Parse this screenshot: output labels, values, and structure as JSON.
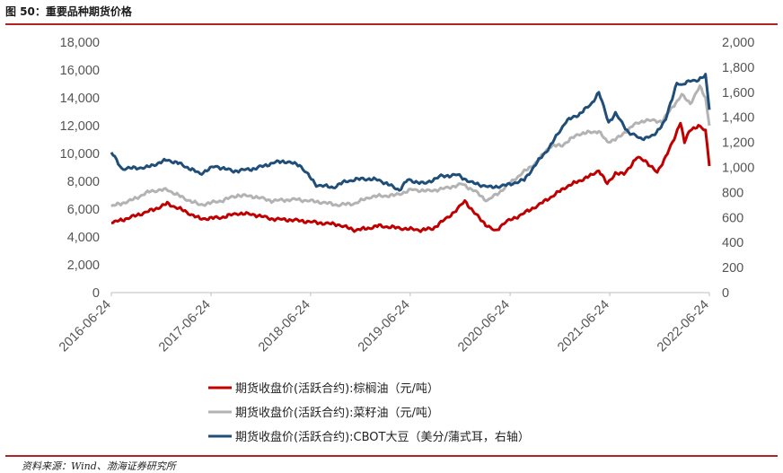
{
  "figure": {
    "title": "图 50：重要品种期货价格",
    "source": "资料来源：Wind、渤海证券研究所"
  },
  "chart_data": {
    "type": "line",
    "x_ticks": [
      "2016-06-24",
      "2017-06-24",
      "2018-06-24",
      "2019-06-24",
      "2020-06-24",
      "2021-06-24",
      "2022-06-24"
    ],
    "x_range": [
      "2016-06-24",
      "2022-06-24"
    ],
    "y_left": {
      "min": 0,
      "max": 18000,
      "ticks": [
        "0",
        "2,000",
        "4,000",
        "6,000",
        "8,000",
        "10,000",
        "12,000",
        "14,000",
        "16,000",
        "18,000"
      ]
    },
    "y_right": {
      "min": 0,
      "max": 2000,
      "ticks": [
        "0",
        "200",
        "400",
        "600",
        "800",
        "1,000",
        "1,200",
        "1,400",
        "1,600",
        "1,800",
        "2,000"
      ]
    },
    "grid": false,
    "legend_position": "bottom",
    "series": [
      {
        "name": "期货收盘价(活跃合约):棕榈油（元/吨）",
        "axis": "left",
        "color": "#c00000",
        "points": [
          [
            "2016-06-24",
            5000
          ],
          [
            "2016-09-01",
            5400
          ],
          [
            "2016-12-01",
            6000
          ],
          [
            "2017-01-15",
            6400
          ],
          [
            "2017-03-15",
            5900
          ],
          [
            "2017-05-15",
            5300
          ],
          [
            "2017-08-01",
            5400
          ],
          [
            "2017-10-01",
            5700
          ],
          [
            "2017-12-01",
            5600
          ],
          [
            "2018-02-01",
            5300
          ],
          [
            "2018-05-01",
            5200
          ],
          [
            "2018-08-01",
            5000
          ],
          [
            "2018-10-01",
            4900
          ],
          [
            "2018-12-01",
            4500
          ],
          [
            "2019-01-15",
            4600
          ],
          [
            "2019-03-01",
            4800
          ],
          [
            "2019-06-01",
            4600
          ],
          [
            "2019-08-01",
            4500
          ],
          [
            "2019-09-15",
            4600
          ],
          [
            "2019-11-01",
            5300
          ],
          [
            "2019-12-15",
            6000
          ],
          [
            "2020-01-10",
            6600
          ],
          [
            "2020-02-15",
            5700
          ],
          [
            "2020-04-01",
            4800
          ],
          [
            "2020-05-01",
            4400
          ],
          [
            "2020-06-01",
            5000
          ],
          [
            "2020-07-15",
            5400
          ],
          [
            "2020-09-01",
            5900
          ],
          [
            "2020-10-15",
            6400
          ],
          [
            "2020-12-01",
            7000
          ],
          [
            "2021-01-15",
            7600
          ],
          [
            "2021-03-01",
            8000
          ],
          [
            "2021-04-15",
            8400
          ],
          [
            "2021-05-15",
            8800
          ],
          [
            "2021-06-15",
            7800
          ],
          [
            "2021-07-15",
            8600
          ],
          [
            "2021-08-15",
            8500
          ],
          [
            "2021-10-01",
            9700
          ],
          [
            "2021-11-01",
            9500
          ],
          [
            "2021-12-15",
            8600
          ],
          [
            "2022-01-15",
            9800
          ],
          [
            "2022-02-15",
            11000
          ],
          [
            "2022-03-10",
            12300
          ],
          [
            "2022-03-25",
            10800
          ],
          [
            "2022-04-15",
            11700
          ],
          [
            "2022-05-15",
            12000
          ],
          [
            "2022-06-10",
            11600
          ],
          [
            "2022-06-24",
            9100
          ]
        ]
      },
      {
        "name": "期货收盘价(活跃合约):菜籽油（元/吨）",
        "axis": "left",
        "color": "#b3b3b3",
        "points": [
          [
            "2016-06-24",
            6200
          ],
          [
            "2016-09-01",
            6600
          ],
          [
            "2016-11-15",
            7300
          ],
          [
            "2017-01-15",
            7400
          ],
          [
            "2017-03-15",
            6800
          ],
          [
            "2017-05-15",
            6300
          ],
          [
            "2017-08-01",
            6600
          ],
          [
            "2017-10-01",
            7000
          ],
          [
            "2017-12-01",
            6900
          ],
          [
            "2018-02-01",
            6600
          ],
          [
            "2018-05-01",
            6700
          ],
          [
            "2018-08-01",
            6500
          ],
          [
            "2018-10-01",
            6300
          ],
          [
            "2018-12-01",
            6400
          ],
          [
            "2019-02-01",
            6900
          ],
          [
            "2019-05-01",
            7000
          ],
          [
            "2019-07-01",
            7400
          ],
          [
            "2019-09-01",
            7300
          ],
          [
            "2019-11-01",
            7500
          ],
          [
            "2020-01-01",
            7800
          ],
          [
            "2020-02-15",
            7300
          ],
          [
            "2020-04-01",
            6600
          ],
          [
            "2020-05-15",
            7200
          ],
          [
            "2020-07-01",
            8000
          ],
          [
            "2020-08-15",
            8700
          ],
          [
            "2020-10-01",
            9400
          ],
          [
            "2020-11-15",
            10500
          ],
          [
            "2021-01-01",
            10600
          ],
          [
            "2021-03-01",
            11400
          ],
          [
            "2021-05-15",
            11600
          ],
          [
            "2021-06-15",
            10800
          ],
          [
            "2021-08-01",
            11200
          ],
          [
            "2021-09-15",
            12000
          ],
          [
            "2021-11-01",
            12400
          ],
          [
            "2022-01-01",
            12300
          ],
          [
            "2022-02-15",
            13500
          ],
          [
            "2022-03-15",
            14200
          ],
          [
            "2022-04-15",
            13600
          ],
          [
            "2022-05-20",
            14800
          ],
          [
            "2022-06-10",
            14000
          ],
          [
            "2022-06-24",
            12000
          ]
        ]
      },
      {
        "name": "期货收盘价(活跃合约):CBOT大豆（美分/蒲式耳，右轴）",
        "axis": "right",
        "color": "#1f4e79",
        "points": [
          [
            "2016-06-24",
            1120
          ],
          [
            "2016-08-01",
            990
          ],
          [
            "2016-11-01",
            1000
          ],
          [
            "2017-01-15",
            1060
          ],
          [
            "2017-03-01",
            1030
          ],
          [
            "2017-05-15",
            950
          ],
          [
            "2017-07-10",
            1010
          ],
          [
            "2017-09-15",
            970
          ],
          [
            "2017-12-01",
            990
          ],
          [
            "2018-02-15",
            1040
          ],
          [
            "2018-03-15",
            1050
          ],
          [
            "2018-05-15",
            1020
          ],
          [
            "2018-07-15",
            860
          ],
          [
            "2018-09-15",
            840
          ],
          [
            "2018-11-01",
            890
          ],
          [
            "2019-01-01",
            910
          ],
          [
            "2019-03-01",
            900
          ],
          [
            "2019-05-15",
            820
          ],
          [
            "2019-06-15",
            900
          ],
          [
            "2019-08-15",
            870
          ],
          [
            "2019-10-15",
            930
          ],
          [
            "2019-12-15",
            940
          ],
          [
            "2020-02-01",
            880
          ],
          [
            "2020-04-15",
            840
          ],
          [
            "2020-06-15",
            860
          ],
          [
            "2020-08-15",
            900
          ],
          [
            "2020-10-01",
            1040
          ],
          [
            "2020-11-15",
            1160
          ],
          [
            "2021-01-15",
            1370
          ],
          [
            "2021-03-01",
            1420
          ],
          [
            "2021-04-15",
            1500
          ],
          [
            "2021-05-15",
            1600
          ],
          [
            "2021-06-20",
            1360
          ],
          [
            "2021-07-15",
            1430
          ],
          [
            "2021-09-01",
            1280
          ],
          [
            "2021-10-15",
            1230
          ],
          [
            "2021-12-01",
            1250
          ],
          [
            "2022-01-15",
            1380
          ],
          [
            "2022-02-25",
            1680
          ],
          [
            "2022-03-15",
            1650
          ],
          [
            "2022-04-15",
            1700
          ],
          [
            "2022-05-15",
            1690
          ],
          [
            "2022-06-10",
            1740
          ],
          [
            "2022-06-24",
            1460
          ]
        ]
      }
    ]
  }
}
